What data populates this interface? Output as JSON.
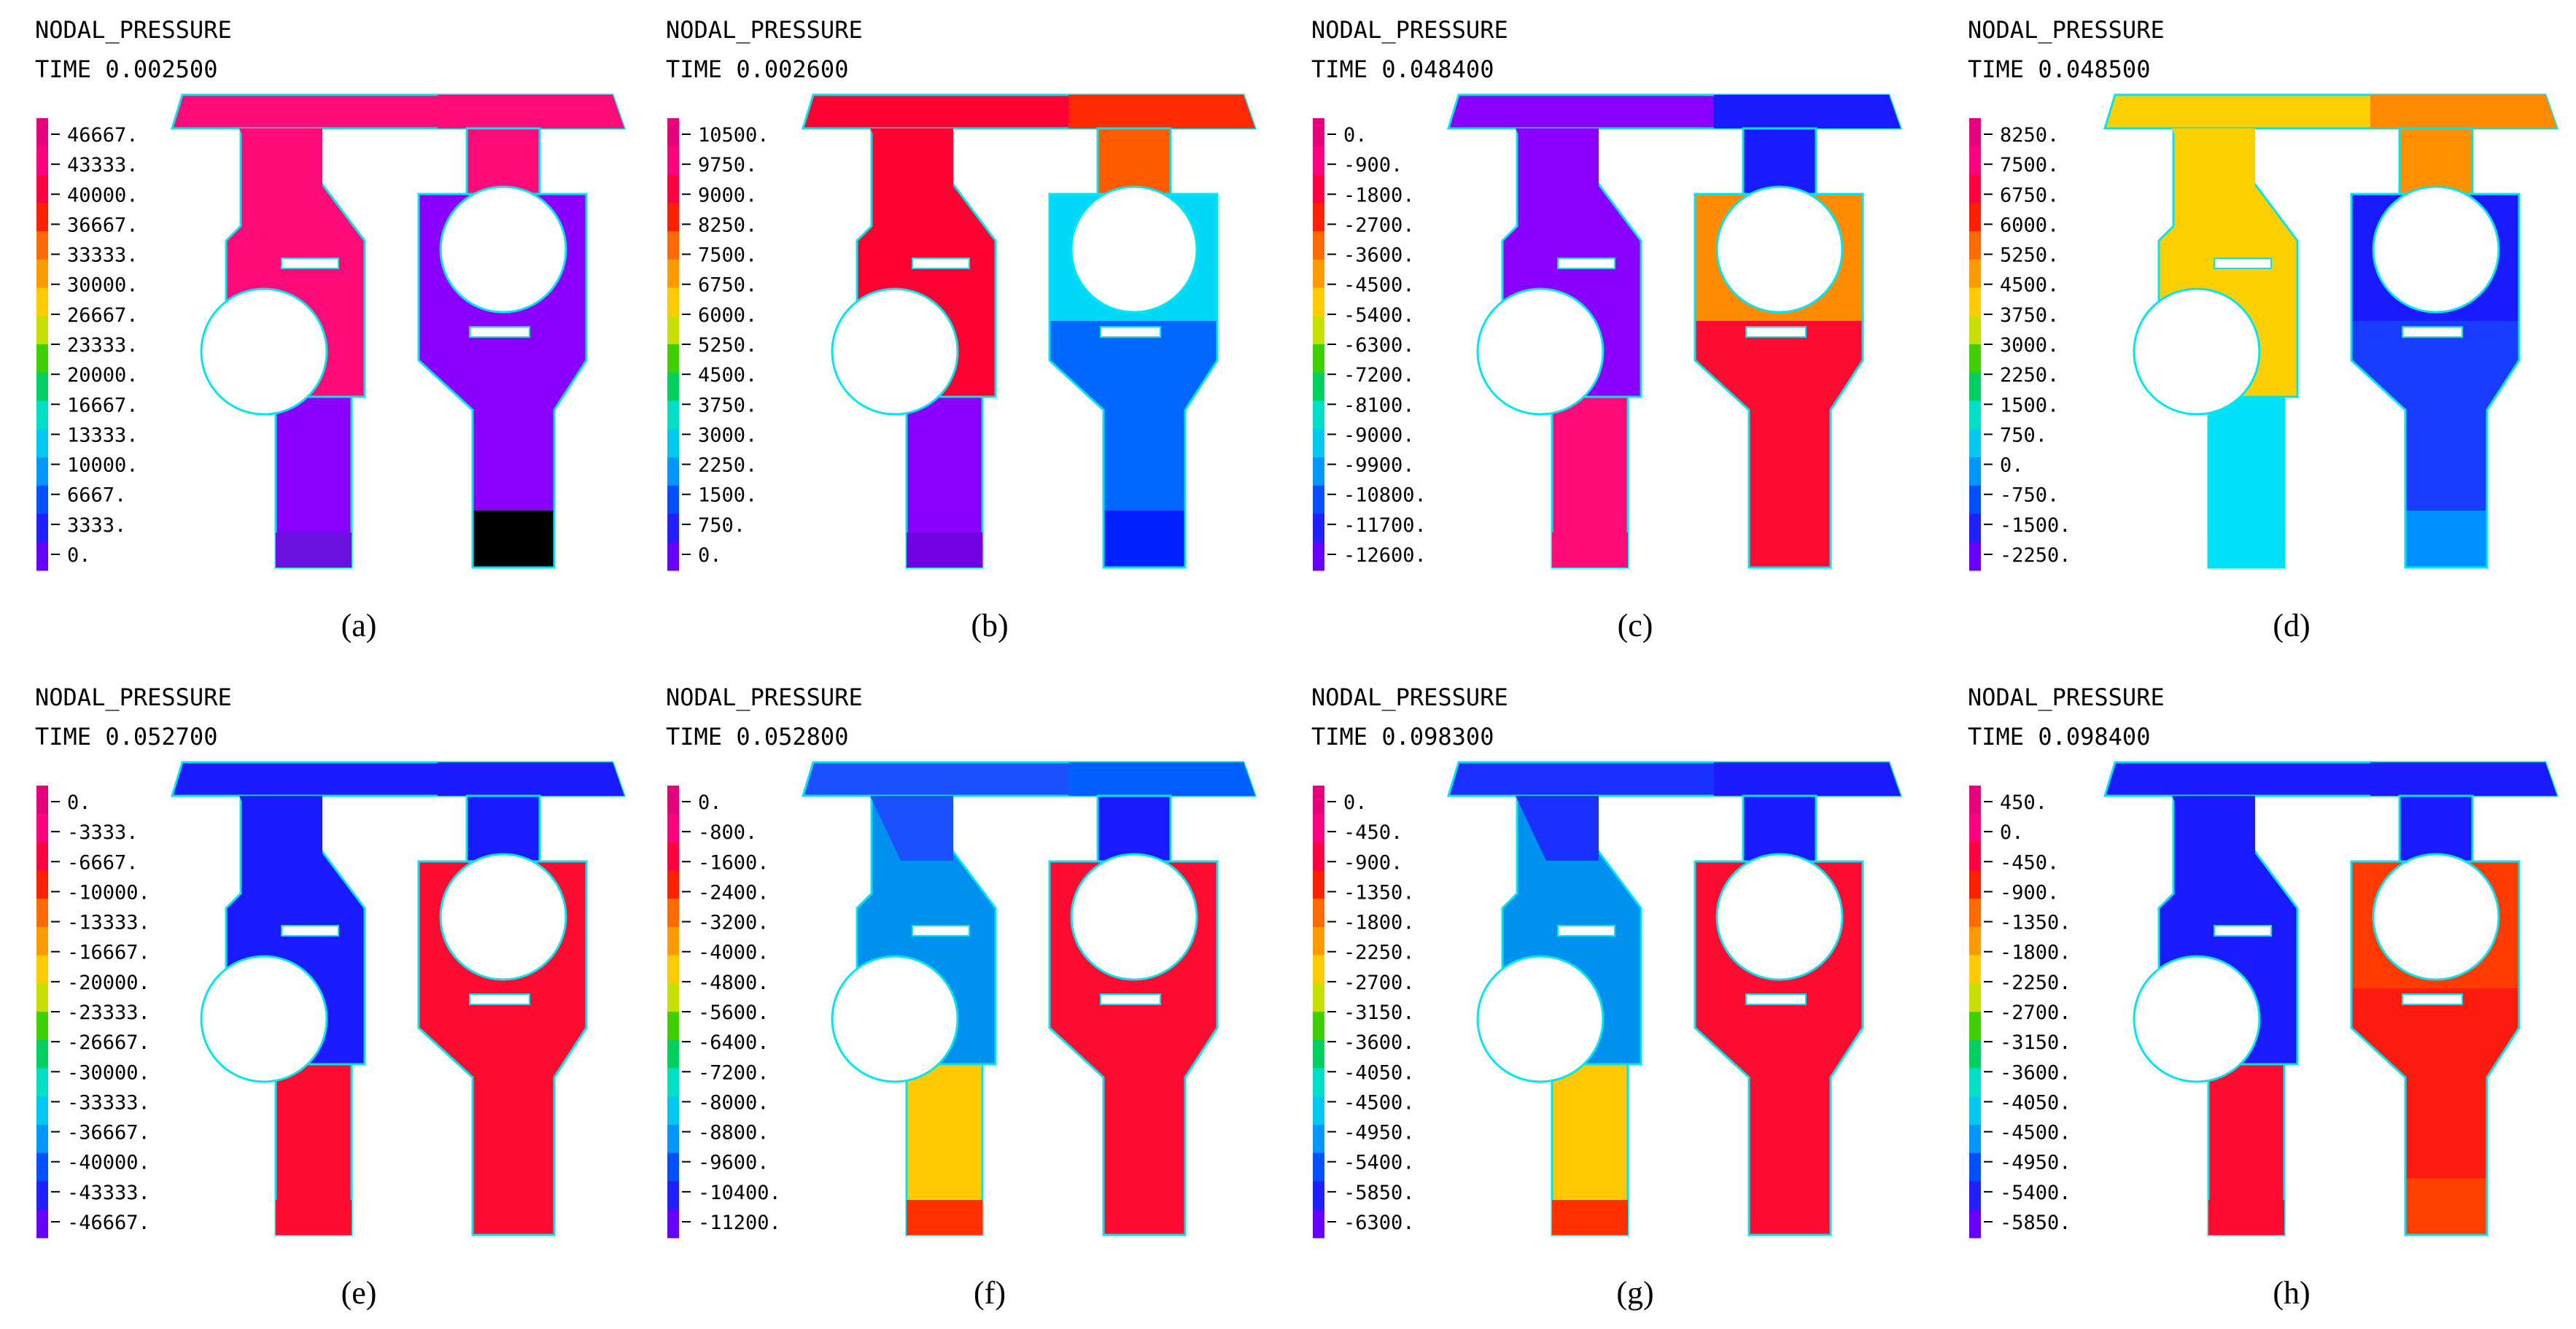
{
  "palette": [
    "#e6007e",
    "#ff0080",
    "#ff0040",
    "#ff2000",
    "#ff6a00",
    "#ff9a00",
    "#ffcc00",
    "#c8e000",
    "#40d000",
    "#00d060",
    "#00e0c8",
    "#00c8f0",
    "#0096ff",
    "#0050ff",
    "#2020ff",
    "#6600ff"
  ],
  "outline_color": "#00e5ee",
  "panels": [
    {
      "label": "(a)",
      "title": "NODAL_PRESSURE",
      "time": "TIME 0.002500",
      "ticks": [
        "46667.",
        "43333.",
        "40000.",
        "36667.",
        "33333.",
        "30000.",
        "26667.",
        "23333.",
        "20000.",
        "16667.",
        "13333.",
        "10000.",
        "6667.",
        "3333.",
        "0."
      ],
      "colors": {
        "left_top": "#ff0a78",
        "left_body": "#ff0a78",
        "left_stem": "#8a00ff",
        "left_stem_bottom": "#6a10e0",
        "right_top": "#ff0a78",
        "right_body": "#8a00ff",
        "right_stem": "#8a00ff",
        "top_right": "#ff0a78"
      }
    },
    {
      "label": "(b)",
      "title": "NODAL_PRESSURE",
      "time": "TIME 0.002600",
      "ticks": [
        "10500.",
        "9750.",
        "9000.",
        "8250.",
        "7500.",
        "6750.",
        "6000.",
        "5250.",
        "4500.",
        "3750.",
        "3000.",
        "2250.",
        "1500.",
        "750.",
        "0."
      ],
      "colors": {
        "left_top": "#ff0033",
        "left_body": "#ff0033",
        "left_stem": "#8a00ff",
        "left_stem_bottom": "#7000e0",
        "right_top": "#ff5a00",
        "top_right": "#ff2a00",
        "right_body": "#00d8f8",
        "right_stem": "#0068ff",
        "right_stem_bottom": "#0020ff"
      }
    },
    {
      "label": "(c)",
      "title": "NODAL_PRESSURE",
      "time": "TIME 0.048400",
      "ticks": [
        "0.",
        "-900.",
        "-1800.",
        "-2700.",
        "-3600.",
        "-4500.",
        "-5400.",
        "-6300.",
        "-7200.",
        "-8100.",
        "-9000.",
        "-9900.",
        "-10800.",
        "-11700.",
        "-12600."
      ],
      "colors": {
        "left_top": "#8a00ff",
        "left_body": "#8a00ff",
        "left_stem": "#ff0a78",
        "left_stem_bottom": "#ff0a78",
        "right_top": "#1a1aff",
        "top_right": "#1a1aff",
        "right_body": "#ff8c00",
        "right_stem": "#ff0a30",
        "right_stem_bottom": "#ff0a30"
      }
    },
    {
      "label": "(d)",
      "title": "NODAL_PRESSURE",
      "time": "TIME 0.048500",
      "ticks": [
        "8250.",
        "7500.",
        "6750.",
        "6000.",
        "5250.",
        "4500.",
        "3750.",
        "3000.",
        "2250.",
        "1500.",
        "750.",
        "0.",
        "-750.",
        "-1500.",
        "-2250."
      ],
      "colors": {
        "left_top": "#ffd000",
        "left_body": "#ffd000",
        "left_stem": "#00e0f8",
        "left_stem_bottom": "#00e0f8",
        "right_top": "#ff9000",
        "top_right": "#ff8a00",
        "right_body": "#1a1aff",
        "right_stem": "#1a3cff",
        "right_stem_bottom": "#0090ff"
      }
    },
    {
      "label": "(e)",
      "title": "NODAL_PRESSURE",
      "time": "TIME 0.052700",
      "ticks": [
        "0.",
        "-3333.",
        "-6667.",
        "-10000.",
        "-13333.",
        "-16667.",
        "-20000.",
        "-23333.",
        "-26667.",
        "-30000.",
        "-33333.",
        "-36667.",
        "-40000.",
        "-43333.",
        "-46667."
      ],
      "colors": {
        "left_top": "#1a1aff",
        "left_body": "#1a1aff",
        "left_stem": "#ff0a30",
        "left_stem_bottom": "#ff0a30",
        "right_top": "#1a1aff",
        "top_right": "#1a1aff",
        "right_body": "#ff0a30",
        "right_stem": "#ff0a30",
        "right_stem_bottom": "#ff0a30"
      }
    },
    {
      "label": "(f)",
      "title": "NODAL_PRESSURE",
      "time": "TIME 0.052800",
      "ticks": [
        "0.",
        "-800.",
        "-1600.",
        "-2400.",
        "-3200.",
        "-4000.",
        "-4800.",
        "-5600.",
        "-6400.",
        "-7200.",
        "-8000.",
        "-8800.",
        "-9600.",
        "-10400.",
        "-11200."
      ],
      "colors": {
        "left_top": "#1a50ff",
        "left_body": "#0090f0",
        "left_stem": "#ffc800",
        "left_stem_bottom": "#ff3000",
        "right_top": "#1a1aff",
        "top_right": "#0060ff",
        "right_body": "#ff0a30",
        "right_stem": "#ff0a30",
        "right_stem_bottom": "#ff0a30"
      }
    },
    {
      "label": "(g)",
      "title": "NODAL_PRESSURE",
      "time": "TIME 0.098300",
      "ticks": [
        "0.",
        "-450.",
        "-900.",
        "-1350.",
        "-1800.",
        "-2250.",
        "-2700.",
        "-3150.",
        "-3600.",
        "-4050.",
        "-4500.",
        "-4950.",
        "-5400.",
        "-5850.",
        "-6300."
      ],
      "colors": {
        "left_top": "#1a30ff",
        "left_body": "#0090f0",
        "left_stem": "#ffc800",
        "left_stem_bottom": "#ff3000",
        "right_top": "#1a1aff",
        "top_right": "#1a1aff",
        "right_body": "#ff0a30",
        "right_stem": "#ff0a30",
        "right_stem_bottom": "#ff0a30"
      }
    },
    {
      "label": "(h)",
      "title": "NODAL_PRESSURE",
      "time": "TIME 0.098400",
      "ticks": [
        "450.",
        "0.",
        "-450.",
        "-900.",
        "-1350.",
        "-1800.",
        "-2250.",
        "-2700.",
        "-3150.",
        "-3600.",
        "-4050.",
        "-4500.",
        "-4950.",
        "-5400.",
        "-5850."
      ],
      "colors": {
        "left_top": "#1a1aff",
        "left_body": "#1a1aff",
        "left_stem": "#ff0a30",
        "left_stem_bottom": "#ff0a30",
        "right_top": "#1a1aff",
        "top_right": "#1a1aff",
        "right_body": "#ff3a00",
        "right_stem": "#ff1a10",
        "right_stem_bottom": "#ff4000"
      }
    }
  ]
}
